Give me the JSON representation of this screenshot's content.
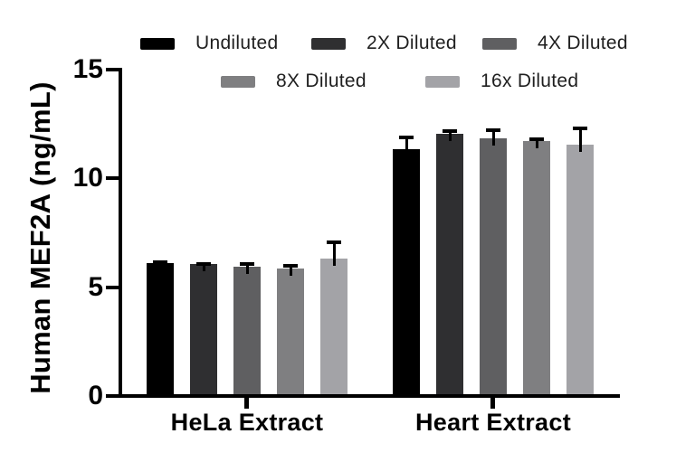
{
  "chart_data": {
    "type": "bar",
    "title": "",
    "ylabel": "Human MEF2A (ng/mL)",
    "xlabel": "",
    "ylim": [
      0,
      15
    ],
    "yticks": [
      0,
      5,
      10,
      15
    ],
    "grid": false,
    "legend_position": "top",
    "error_bars": "upper-sd",
    "categories": [
      "HeLa Extract",
      "Heart Extract"
    ],
    "series": [
      {
        "name": "Undiluted",
        "color": "#000000",
        "values": [
          6.1,
          11.35
        ],
        "errors": [
          0.15,
          0.6
        ]
      },
      {
        "name": "2X Diluted",
        "color": "#2f2f31",
        "values": [
          6.05,
          12.05
        ],
        "errors": [
          0.12,
          0.2
        ]
      },
      {
        "name": "4X Diluted",
        "color": "#5f5f61",
        "values": [
          5.95,
          11.85
        ],
        "errors": [
          0.2,
          0.45
        ]
      },
      {
        "name": "8X Diluted",
        "color": "#7f7f81",
        "values": [
          5.85,
          11.7
        ],
        "errors": [
          0.2,
          0.2
        ]
      },
      {
        "name": "16x Diluted",
        "color": "#a3a3a7",
        "values": [
          6.3,
          11.55
        ],
        "errors": [
          0.85,
          0.85
        ]
      }
    ]
  }
}
